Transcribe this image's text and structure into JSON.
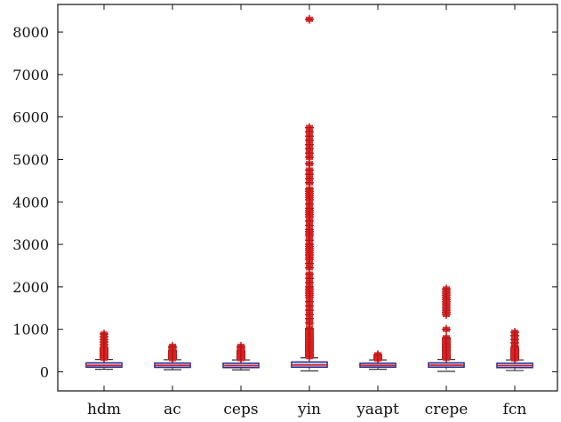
{
  "chart_data": {
    "type": "box",
    "title": "",
    "xlabel": "",
    "ylabel": "",
    "ylim": [
      -450,
      8650
    ],
    "yticks": [
      0,
      1000,
      2000,
      3000,
      4000,
      5000,
      6000,
      7000,
      8000
    ],
    "ytick_labels": [
      "0",
      "1000",
      "2000",
      "3000",
      "4000",
      "5000",
      "6000",
      "7000",
      "8000"
    ],
    "categories": [
      "hdm",
      "ac",
      "ceps",
      "yin",
      "yaapt",
      "crepe",
      "fcn"
    ],
    "boxes": [
      {
        "category": "hdm",
        "whisker_low": 60,
        "q1": 110,
        "median": 150,
        "q3": 210,
        "whisker_high": 290,
        "outliers": [
          320,
          345,
          370,
          395,
          420,
          445,
          470,
          495,
          520,
          545,
          580,
          640,
          700,
          760,
          830,
          890
        ]
      },
      {
        "category": "ac",
        "whisker_low": 50,
        "q1": 105,
        "median": 150,
        "q3": 205,
        "whisker_high": 285,
        "outliers": [
          310,
          335,
          360,
          385,
          410,
          435,
          460,
          485,
          510,
          560,
          600
        ]
      },
      {
        "category": "ceps",
        "whisker_low": 45,
        "q1": 100,
        "median": 145,
        "q3": 200,
        "whisker_high": 280,
        "outliers": [
          310,
          335,
          360,
          385,
          410,
          435,
          460,
          485,
          510,
          560,
          600
        ]
      },
      {
        "category": "yin",
        "whisker_low": 20,
        "q1": 110,
        "median": 160,
        "q3": 230,
        "whisker_high": 330,
        "outliers": [
          360,
          390,
          420,
          450,
          480,
          510,
          540,
          570,
          600,
          630,
          660,
          690,
          720,
          750,
          780,
          810,
          840,
          870,
          900,
          930,
          960,
          990,
          1020,
          1150,
          1250,
          1350,
          1450,
          1550,
          1650,
          1750,
          1800,
          1850,
          1900,
          1950,
          2000,
          2100,
          2200,
          2300,
          2450,
          2550,
          2650,
          2700,
          2750,
          2800,
          2850,
          2900,
          2950,
          3000,
          3100,
          3200,
          3250,
          3300,
          3350,
          3450,
          3550,
          3650,
          3700,
          3750,
          3800,
          3850,
          3950,
          4050,
          4100,
          4150,
          4200,
          4250,
          4300,
          4450,
          4550,
          4650,
          4750,
          4900,
          5050,
          5150,
          5250,
          5350,
          5450,
          5550,
          5650,
          5750,
          8300
        ]
      },
      {
        "category": "yaapt",
        "whisker_low": 60,
        "q1": 110,
        "median": 150,
        "q3": 200,
        "whisker_high": 280,
        "outliers": [
          300,
          320,
          340,
          360,
          380,
          400
        ]
      },
      {
        "category": "crepe",
        "whisker_low": 10,
        "q1": 110,
        "median": 155,
        "q3": 210,
        "whisker_high": 290,
        "outliers": [
          320,
          350,
          380,
          410,
          440,
          470,
          500,
          530,
          560,
          590,
          620,
          650,
          680,
          710,
          740,
          770,
          800,
          1000,
          1350,
          1400,
          1450,
          1500,
          1550,
          1600,
          1650,
          1700,
          1750,
          1800,
          1850,
          1900,
          1950
        ]
      },
      {
        "category": "fcn",
        "whisker_low": 30,
        "q1": 100,
        "median": 145,
        "q3": 200,
        "whisker_high": 280,
        "outliers": [
          305,
          330,
          355,
          380,
          405,
          430,
          455,
          480,
          505,
          530,
          560,
          600,
          680,
          760,
          850,
          930
        ]
      }
    ],
    "grid": false,
    "legend": "none",
    "colors": {
      "box_stroke": "#2b2b8c",
      "box_fill": "#ffffff",
      "median": "#d21f1f",
      "whisker": "#333333",
      "outlier": "#b01818",
      "outlier_fill": "#e02020",
      "axis": "#111111"
    }
  }
}
